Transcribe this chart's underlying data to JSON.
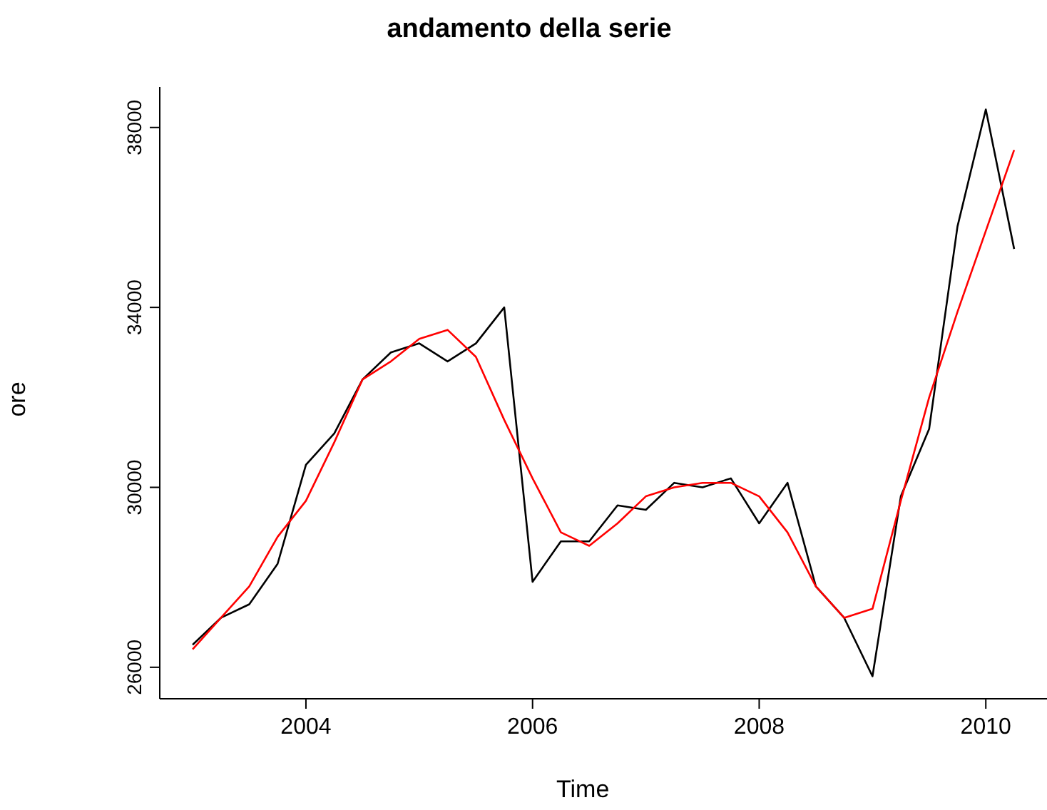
{
  "chart_data": {
    "type": "line",
    "title": "andamento della serie",
    "xlabel": "Time",
    "ylabel": "ore",
    "x": [
      2003,
      2003.25,
      2003.5,
      2003.75,
      2004,
      2004.25,
      2004.5,
      2004.75,
      2005,
      2005.25,
      2005.5,
      2005.75,
      2006,
      2006.25,
      2006.5,
      2006.75,
      2007,
      2007.25,
      2007.5,
      2007.75,
      2008,
      2008.25,
      2008.5,
      2008.75,
      2009,
      2009.25,
      2009.5,
      2009.75,
      2010,
      2010.25
    ],
    "series": [
      {
        "color": "#000000",
        "values": [
          26500,
          27100,
          27400,
          28300,
          30500,
          31200,
          32400,
          33000,
          33200,
          32800,
          33200,
          34000,
          27900,
          28800,
          28800,
          29600,
          29500,
          30100,
          30000,
          30200,
          29200,
          30100,
          27800,
          27100,
          25800,
          29800,
          31300,
          35800,
          38400,
          35300
        ]
      },
      {
        "color": "#ff0000",
        "values": [
          26400,
          27100,
          27800,
          28900,
          29700,
          31000,
          32400,
          32800,
          33300,
          33500,
          32900,
          31500,
          30200,
          29000,
          28700,
          29200,
          29800,
          30000,
          30100,
          30100,
          29800,
          29000,
          27800,
          27100,
          27300,
          29700,
          32000,
          33900,
          35700,
          37500
        ]
      }
    ],
    "xlim": [
      2002.71,
      2010.54
    ],
    "ylim": [
      25300,
      38900
    ],
    "xticks": [
      2004,
      2006,
      2008,
      2010
    ],
    "yticks": [
      26000,
      30000,
      34000,
      38000
    ],
    "grid": false,
    "legend": false,
    "marker": "none",
    "line_style": "solid"
  }
}
